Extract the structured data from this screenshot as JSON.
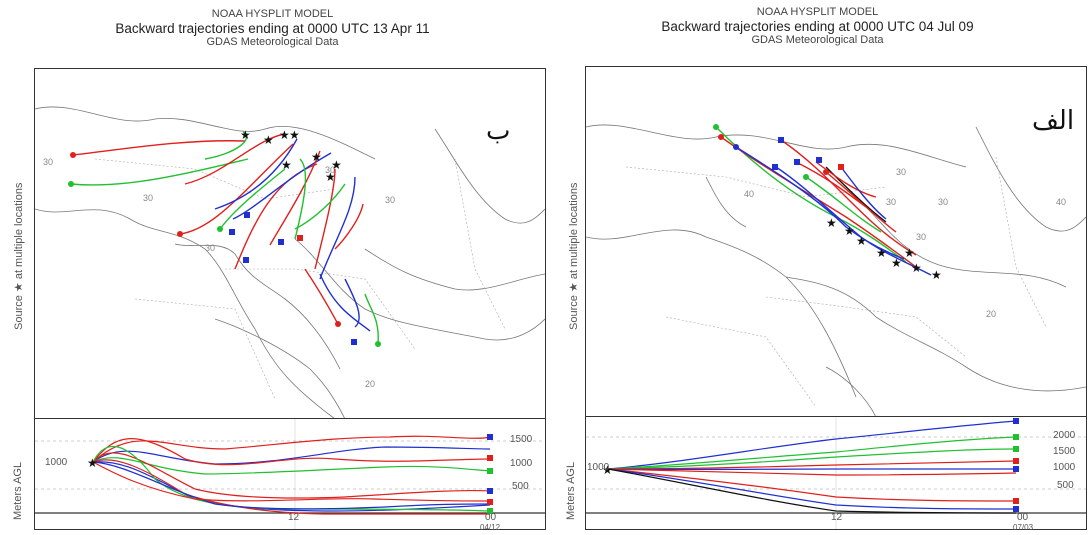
{
  "left_panel": {
    "model": "NOAA HYSPLIT MODEL",
    "title": "Backward trajectories ending at 0000 UTC 13 Apr 11",
    "data": "GDAS Meteorological Data",
    "side_label": "Source ★ at multiple locations",
    "letter": "ب",
    "height_label": "Meters AGL",
    "start_height": "1000",
    "height_ticks": [
      "1500",
      "1000",
      "500"
    ],
    "time_ticks": [
      "12",
      "00"
    ],
    "date_tick": "04/12",
    "lat_labels": [
      "30",
      "30",
      "30",
      "30",
      "30",
      "20"
    ]
  },
  "right_panel": {
    "model": "NOAA HYSPLIT MODEL",
    "title": "Backward trajectories ending at 0000 UTC 04 Jul 09",
    "data": "GDAS Meteorological Data",
    "side_label": "Source ★ at multiple locations",
    "letter": "الف",
    "height_label": "Meters AGL",
    "start_height": "1000",
    "height_ticks": [
      "2000",
      "1500",
      "1000",
      "500"
    ],
    "time_ticks": [
      "12",
      "00"
    ],
    "date_tick": "07/03",
    "lat_labels": [
      "40",
      "30",
      "30",
      "30",
      "20",
      "30",
      "40"
    ]
  },
  "colors": {
    "red": "#e0201c",
    "blue": "#2030d0",
    "green": "#20c030",
    "black": "#111111"
  }
}
